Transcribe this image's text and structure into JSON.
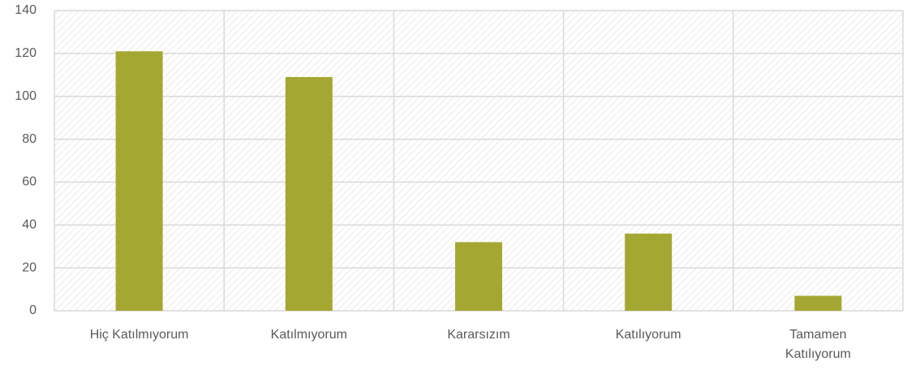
{
  "chart_data": {
    "type": "bar",
    "categories": [
      "Hiç Katılmıyorum",
      "Katılmıyorum",
      "Kararsızım",
      "Katılıyorum",
      "Tamamen Katılıyorum"
    ],
    "values": [
      121,
      109,
      32,
      36,
      7
    ],
    "color": "#a5a733",
    "ylim": [
      0,
      140
    ],
    "yticks": [
      0,
      20,
      40,
      60,
      80,
      100,
      120,
      140
    ],
    "grid": true
  }
}
